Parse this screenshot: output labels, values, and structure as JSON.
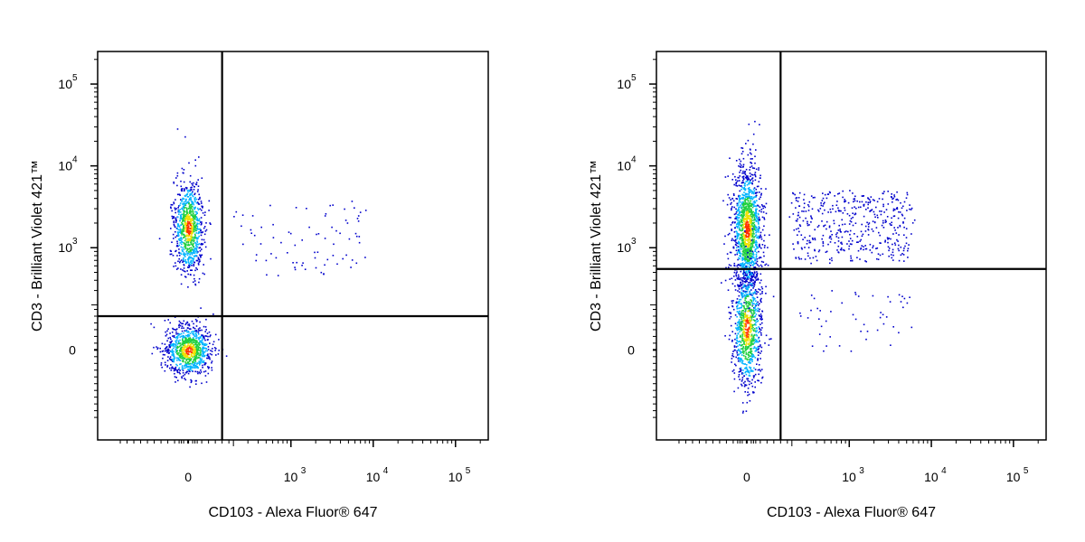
{
  "chart_data": [
    {
      "type": "scatter",
      "style": "pseudocolor density dot plot",
      "xlabel": "CD103 - Alexa Fluor® 647",
      "ylabel": "CD3 - Brilliant Violet 421™",
      "x_scale": "biexponential",
      "y_scale": "biexponential",
      "x_ticks": [
        {
          "value": 0,
          "base": "0",
          "exp": ""
        },
        {
          "value": 1000,
          "base": "10",
          "exp": "3"
        },
        {
          "value": 10000,
          "base": "10",
          "exp": "4"
        },
        {
          "value": 100000,
          "base": "10",
          "exp": "5"
        }
      ],
      "y_ticks": [
        {
          "value": 0,
          "base": "0",
          "exp": ""
        },
        {
          "value": 1000,
          "base": "10",
          "exp": "3"
        },
        {
          "value": 10000,
          "base": "10",
          "exp": "4"
        },
        {
          "value": 100000,
          "base": "10",
          "exp": "5"
        }
      ],
      "gates": {
        "x": 150,
        "y": 150
      },
      "colormap": [
        "#0000cc",
        "#00b4ff",
        "#20d040",
        "#f0e000",
        "#ff3000"
      ],
      "populations": [
        {
          "x_center": 0,
          "y_center": 1800,
          "events": 900
        },
        {
          "x_center": 0,
          "y_center": 0,
          "events": 900
        },
        {
          "x_range": [
            200,
            8000
          ],
          "y_range": [
            500,
            3500
          ],
          "events": 80
        }
      ]
    },
    {
      "type": "scatter",
      "style": "pseudocolor density dot plot",
      "xlabel": "CD103 - Alexa Fluor® 647",
      "ylabel": "CD3 - Brilliant Violet 421™",
      "x_scale": "biexponential",
      "y_scale": "biexponential",
      "x_ticks": [
        {
          "value": 0,
          "base": "0",
          "exp": ""
        },
        {
          "value": 1000,
          "base": "10",
          "exp": "3"
        },
        {
          "value": 10000,
          "base": "10",
          "exp": "4"
        },
        {
          "value": 100000,
          "base": "10",
          "exp": "5"
        }
      ],
      "y_ticks": [
        {
          "value": 0,
          "base": "0",
          "exp": ""
        },
        {
          "value": 1000,
          "base": "10",
          "exp": "3"
        },
        {
          "value": 10000,
          "base": "10",
          "exp": "4"
        },
        {
          "value": 100000,
          "base": "10",
          "exp": "5"
        }
      ],
      "gates": {
        "x": 150,
        "y": 550
      },
      "colormap": [
        "#0000cc",
        "#00b4ff",
        "#20d040",
        "#f0e000",
        "#ff3000"
      ],
      "populations": [
        {
          "x_center": 0,
          "y_center": 1700,
          "events": 1400
        },
        {
          "x_center": 0,
          "y_center": 100,
          "events": 900
        },
        {
          "x_range": [
            200,
            6000
          ],
          "y_range": [
            700,
            5000
          ],
          "events": 450
        },
        {
          "x_range": [
            200,
            6000
          ],
          "y_range": [
            0,
            300
          ],
          "events": 50
        }
      ]
    }
  ]
}
